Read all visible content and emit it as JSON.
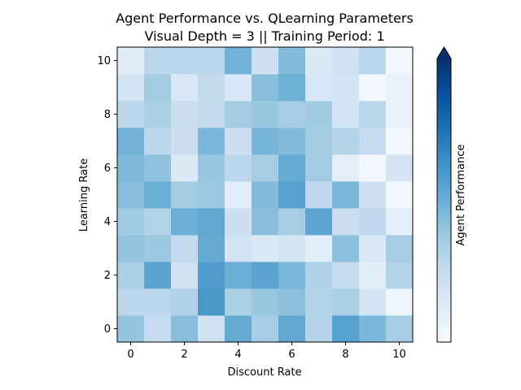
{
  "chart_data": {
    "type": "heatmap",
    "title": "Agent Performance vs. QLearning Parameters",
    "subtitle": "Visual Depth = 3 || Training Period: 1",
    "xlabel": "Discount Rate",
    "ylabel": "Learning Rate",
    "xlim": [
      -0.5,
      10.5
    ],
    "ylim": [
      -0.5,
      10.5
    ],
    "x_ticks": [
      "0",
      "2",
      "4",
      "6",
      "8",
      "10"
    ],
    "y_ticks": [
      "0",
      "2",
      "4",
      "6",
      "8",
      "10"
    ],
    "colorbar_label": "Agent Performance",
    "colormap": "Blues",
    "colorbar_extend": "max",
    "value_range": [
      0,
      1
    ],
    "values_row_order": "y=0 first",
    "values": [
      [
        0.4,
        0.25,
        0.43,
        0.2,
        0.52,
        0.35,
        0.53,
        0.3,
        0.56,
        0.46,
        0.35
      ],
      [
        0.28,
        0.28,
        0.32,
        0.6,
        0.33,
        0.39,
        0.42,
        0.31,
        0.34,
        0.18,
        0.05
      ],
      [
        0.33,
        0.55,
        0.2,
        0.58,
        0.5,
        0.55,
        0.46,
        0.32,
        0.25,
        0.11,
        0.31
      ],
      [
        0.4,
        0.38,
        0.26,
        0.52,
        0.19,
        0.15,
        0.18,
        0.11,
        0.42,
        0.15,
        0.35
      ],
      [
        0.37,
        0.31,
        0.5,
        0.53,
        0.22,
        0.43,
        0.35,
        0.54,
        0.22,
        0.27,
        0.1
      ],
      [
        0.43,
        0.5,
        0.36,
        0.38,
        0.11,
        0.44,
        0.56,
        0.27,
        0.46,
        0.21,
        0.03
      ],
      [
        0.45,
        0.41,
        0.14,
        0.39,
        0.28,
        0.35,
        0.52,
        0.36,
        0.1,
        0.03,
        0.17
      ],
      [
        0.48,
        0.28,
        0.22,
        0.46,
        0.22,
        0.47,
        0.44,
        0.36,
        0.3,
        0.25,
        0.03
      ],
      [
        0.28,
        0.33,
        0.23,
        0.26,
        0.36,
        0.39,
        0.35,
        0.37,
        0.18,
        0.29,
        0.07
      ],
      [
        0.18,
        0.36,
        0.16,
        0.26,
        0.16,
        0.43,
        0.49,
        0.16,
        0.18,
        0.03,
        0.07
      ],
      [
        0.12,
        0.28,
        0.28,
        0.29,
        0.48,
        0.21,
        0.44,
        0.15,
        0.2,
        0.28,
        0.03
      ]
    ]
  }
}
